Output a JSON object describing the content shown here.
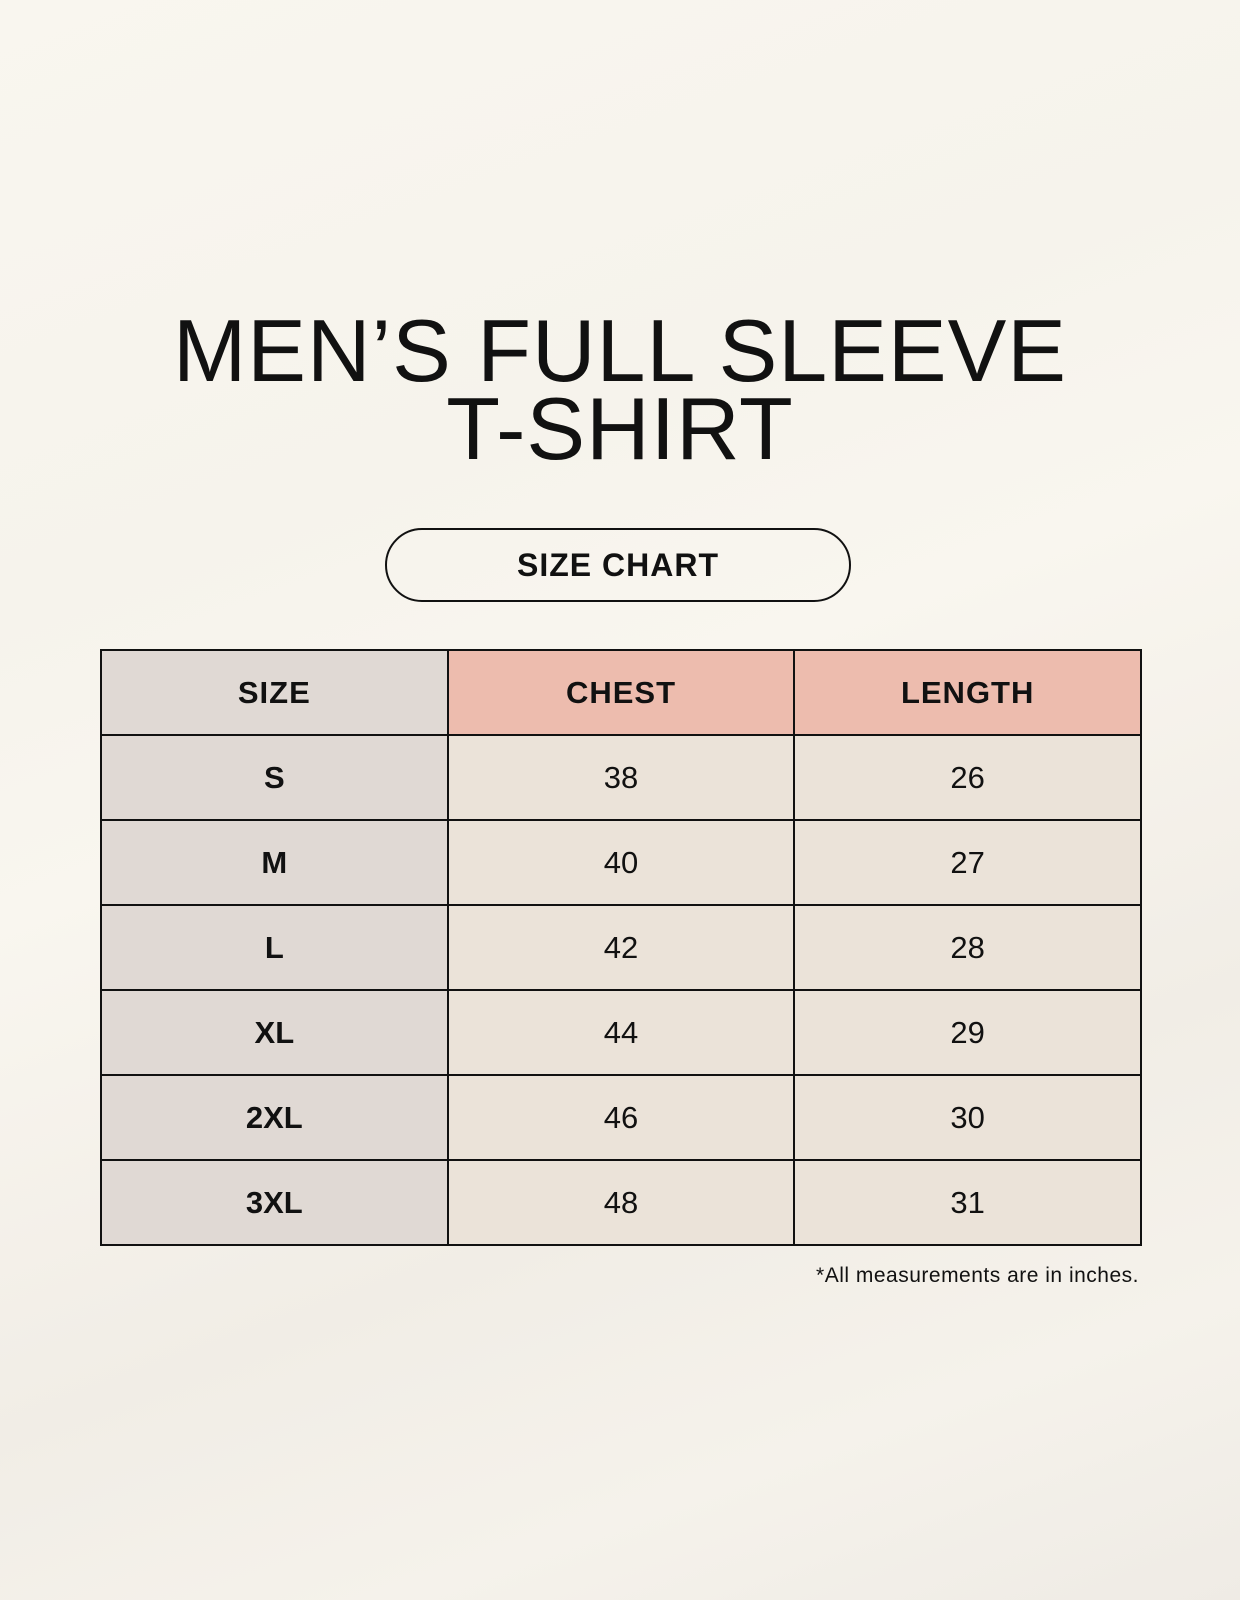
{
  "title": {
    "line1": "MEN’S FULL SLEEVE",
    "line2": "T-SHIRT"
  },
  "badge": "SIZE CHART",
  "colors": {
    "size_column": "#e0d9d4",
    "header_highlight": "#edbcae",
    "value_cells": "#ebe3d9"
  },
  "table": {
    "headers": [
      "SIZE",
      "CHEST",
      "LENGTH"
    ],
    "rows": [
      [
        "S",
        "38",
        "26"
      ],
      [
        "M",
        "40",
        "27"
      ],
      [
        "L",
        "42",
        "28"
      ],
      [
        "XL",
        "44",
        "29"
      ],
      [
        "2XL",
        "46",
        "30"
      ],
      [
        "3XL",
        "48",
        "31"
      ]
    ]
  },
  "footnote": "*All measurements are in inches."
}
